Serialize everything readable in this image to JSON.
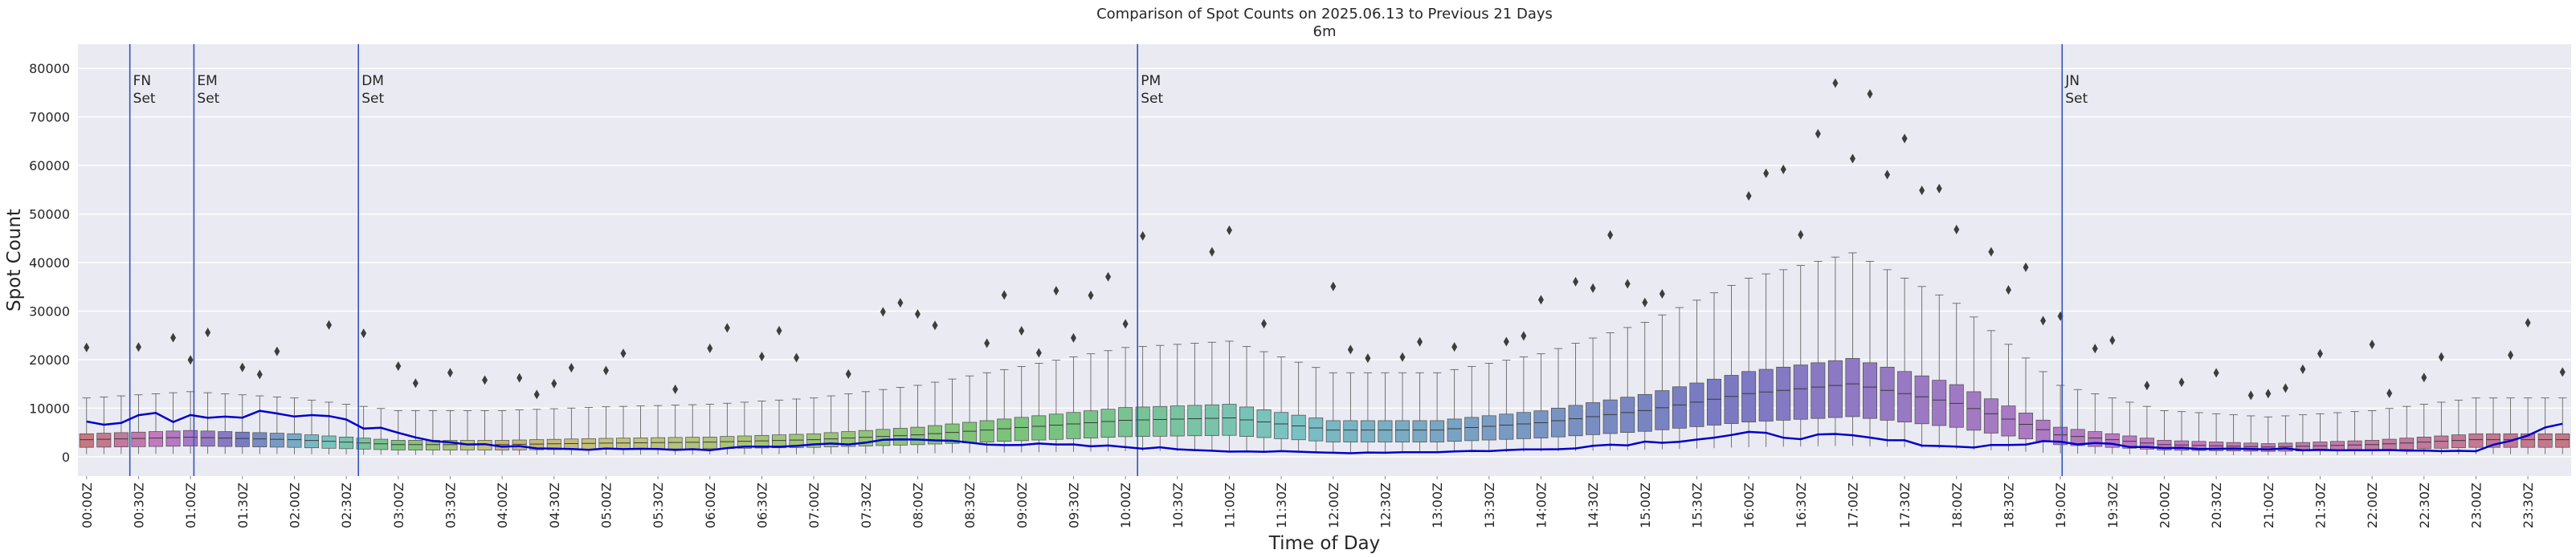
{
  "chart_data": {
    "type": "box",
    "title": "Comparison of Spot Counts on 2025.06.13 to Previous 21 Days",
    "subtitle": "6m",
    "xlabel": "Time of Day",
    "ylabel": "Spot Count",
    "ylim": [
      -4000,
      85000
    ],
    "yticks": [
      0,
      10000,
      20000,
      30000,
      40000,
      50000,
      60000,
      70000,
      80000
    ],
    "bins_per_hour": 6,
    "x_tick_labels": [
      "00:00Z",
      "00:30Z",
      "01:00Z",
      "01:30Z",
      "02:00Z",
      "02:30Z",
      "03:00Z",
      "03:30Z",
      "04:00Z",
      "04:30Z",
      "05:00Z",
      "05:30Z",
      "06:00Z",
      "06:30Z",
      "07:00Z",
      "07:30Z",
      "08:00Z",
      "08:30Z",
      "09:00Z",
      "09:30Z",
      "10:00Z",
      "10:30Z",
      "11:00Z",
      "11:30Z",
      "12:00Z",
      "12:30Z",
      "13:00Z",
      "13:30Z",
      "14:00Z",
      "14:30Z",
      "15:00Z",
      "15:30Z",
      "16:00Z",
      "16:30Z",
      "17:00Z",
      "17:30Z",
      "18:00Z",
      "18:30Z",
      "19:00Z",
      "19:30Z",
      "20:00Z",
      "20:30Z",
      "21:00Z",
      "21:30Z",
      "22:00Z",
      "22:30Z",
      "23:00Z",
      "23:30Z"
    ],
    "median_by_hour": [
      3500,
      4000,
      3500,
      2500,
      2500,
      2800,
      3000,
      3500,
      4500,
      6000,
      7500,
      8000,
      5500,
      5500,
      7000,
      9500,
      13000,
      15000,
      11000,
      4500,
      2500,
      2000,
      2500,
      3500
    ],
    "current_day_by_hour": [
      7500,
      8500,
      9000,
      4500,
      2000,
      1500,
      1500,
      2500,
      3500,
      2500,
      2000,
      1200,
      800,
      1000,
      1500,
      3000,
      4500,
      4000,
      2000,
      3000,
      2000,
      1500,
      1500,
      1200
    ],
    "events": [
      {
        "label": "FN\nSet",
        "time": "00:30Z"
      },
      {
        "label": "EM\nSet",
        "time": "01:07Z"
      },
      {
        "label": "DM\nSet",
        "time": "02:42Z"
      },
      {
        "label": "PM\nSet",
        "time": "10:12Z"
      },
      {
        "label": "JN\nSet",
        "time": "19:06Z"
      }
    ],
    "colors": {
      "background": "#eaeaf2",
      "grid": "#ffffff",
      "current_day_line": "#0000cc",
      "event_line": "#3355bb",
      "outlier": "#3d3d3d"
    }
  }
}
